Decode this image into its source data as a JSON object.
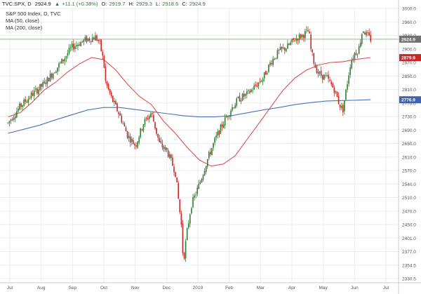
{
  "header": {
    "symbol": "TVC:SPX, D",
    "last": "2924.9",
    "change_arrow": "▲",
    "change": "+11.1 (+0.38%)",
    "open_label": "O:",
    "open": "2919.7",
    "high_label": "H:",
    "high": "2929.3",
    "low_label": "L:",
    "low": "2918.6",
    "close_label": "C:",
    "close": "2924.9"
  },
  "legend": {
    "title": "S&P 500 Index, D, TVC",
    "ma50": "MA (50, close)",
    "ma200": "MA (200, close)"
  },
  "price_tags": [
    {
      "label": "2924.9",
      "value": 2924.9,
      "color": "#707070"
    },
    {
      "label": "2879.9",
      "value": 2879.9,
      "color": "#c62828"
    },
    {
      "label": "2776.9",
      "value": 2776.9,
      "color": "#3f62a8"
    }
  ],
  "colors": {
    "up": "#2e7d32",
    "down": "#c62828",
    "ma50": "#d9534f",
    "ma200": "#4a72b8",
    "grid": "#eeeeee",
    "axis": "#cccccc",
    "last_line": "#8cc08c"
  },
  "chart_data": {
    "type": "candlestick",
    "title": "S&P 500 Index, D, TVC",
    "ylim": [
      2330,
      3000
    ],
    "y_ticks": [
      "3000.0",
      "2960.0",
      "2930.0",
      "2900.0",
      "2870.0",
      "2850.0",
      "2810.0",
      "2770.0",
      "2730.0",
      "2690.0",
      "2650.0",
      "2610.0",
      "2570.0",
      "2540.0",
      "2510.0",
      "2470.0",
      "2450.0",
      "2401.0",
      "2377.0",
      "2354.5",
      "2330.5"
    ],
    "x_ticks": [
      "Jul",
      "Aug",
      "Sep",
      "Oct",
      "Nov",
      "Dec",
      "2019",
      "Feb",
      "Mar",
      "Apr",
      "May",
      "Jun",
      "Jul"
    ],
    "grid": true,
    "last_value": 2924.9,
    "ma50_end": 2879.9,
    "ma200_end": 2776.9,
    "price_path": [
      [
        2.0,
        2720
      ],
      [
        5.0,
        2760
      ],
      [
        8.0,
        2790
      ],
      [
        11.0,
        2815
      ],
      [
        14.0,
        2852
      ],
      [
        16.0,
        2876
      ],
      [
        18.0,
        2905
      ],
      [
        20.0,
        2916
      ],
      [
        22.0,
        2925
      ],
      [
        24.0,
        2930
      ],
      [
        25.0,
        2915
      ],
      [
        26.0,
        2870
      ],
      [
        26.5,
        2820
      ],
      [
        28.0,
        2780
      ],
      [
        30.0,
        2740
      ],
      [
        32.0,
        2690
      ],
      [
        34.0,
        2665
      ],
      [
        36.0,
        2720
      ],
      [
        38.0,
        2745
      ],
      [
        40.0,
        2670
      ],
      [
        42.0,
        2650
      ],
      [
        44.0,
        2600
      ],
      [
        45.5,
        2470
      ],
      [
        46.0,
        2380
      ],
      [
        47.0,
        2460
      ],
      [
        48.0,
        2520
      ],
      [
        50.0,
        2570
      ],
      [
        52.0,
        2630
      ],
      [
        54.0,
        2680
      ],
      [
        56.0,
        2720
      ],
      [
        58.0,
        2755
      ],
      [
        60.0,
        2780
      ],
      [
        62.0,
        2790
      ],
      [
        64.0,
        2810
      ],
      [
        66.0,
        2830
      ],
      [
        68.0,
        2870
      ],
      [
        70.0,
        2895
      ],
      [
        72.0,
        2905
      ],
      [
        74.0,
        2925
      ],
      [
        76.0,
        2935
      ],
      [
        77.5,
        2945
      ],
      [
        78.0,
        2900
      ],
      [
        79.0,
        2860
      ],
      [
        80.0,
        2840
      ],
      [
        82.0,
        2830
      ],
      [
        84.0,
        2800
      ],
      [
        85.0,
        2770
      ],
      [
        86.0,
        2750
      ],
      [
        87.0,
        2810
      ],
      [
        88.0,
        2870
      ],
      [
        89.0,
        2890
      ],
      [
        90.0,
        2900
      ],
      [
        91.0,
        2950
      ],
      [
        92.0,
        2935
      ],
      [
        93.0,
        2925
      ]
    ],
    "ma50": [
      [
        2.0,
        2735
      ],
      [
        5.0,
        2745
      ],
      [
        8.0,
        2770
      ],
      [
        11.0,
        2800
      ],
      [
        14.0,
        2820
      ],
      [
        17.0,
        2845
      ],
      [
        20.0,
        2865
      ],
      [
        23.0,
        2880
      ],
      [
        26.0,
        2875
      ],
      [
        29.0,
        2850
      ],
      [
        32.0,
        2815
      ],
      [
        35.0,
        2785
      ],
      [
        38.0,
        2765
      ],
      [
        41.0,
        2725
      ],
      [
        44.0,
        2695
      ],
      [
        47.0,
        2660
      ],
      [
        50.0,
        2630
      ],
      [
        53.0,
        2615
      ],
      [
        56.0,
        2620
      ],
      [
        59.0,
        2640
      ],
      [
        62.0,
        2680
      ],
      [
        65.0,
        2720
      ],
      [
        68.0,
        2760
      ],
      [
        71.0,
        2800
      ],
      [
        74.0,
        2830
      ],
      [
        77.0,
        2850
      ],
      [
        80.0,
        2862
      ],
      [
        83.0,
        2868
      ],
      [
        86.0,
        2870
      ],
      [
        89.0,
        2875
      ],
      [
        93.0,
        2880
      ]
    ],
    "ma200": [
      [
        2.0,
        2695
      ],
      [
        6.0,
        2705
      ],
      [
        10.0,
        2715
      ],
      [
        14.0,
        2728
      ],
      [
        18.0,
        2740
      ],
      [
        22.0,
        2752
      ],
      [
        26.0,
        2758
      ],
      [
        30.0,
        2758
      ],
      [
        34.0,
        2753
      ],
      [
        38.0,
        2748
      ],
      [
        42.0,
        2743
      ],
      [
        46.0,
        2738
      ],
      [
        50.0,
        2735
      ],
      [
        54.0,
        2735
      ],
      [
        58.0,
        2738
      ],
      [
        62.0,
        2745
      ],
      [
        66.0,
        2752
      ],
      [
        70.0,
        2758
      ],
      [
        74.0,
        2765
      ],
      [
        78.0,
        2770
      ],
      [
        82.0,
        2774
      ],
      [
        86.0,
        2775
      ],
      [
        90.0,
        2776
      ],
      [
        93.0,
        2777
      ]
    ]
  }
}
